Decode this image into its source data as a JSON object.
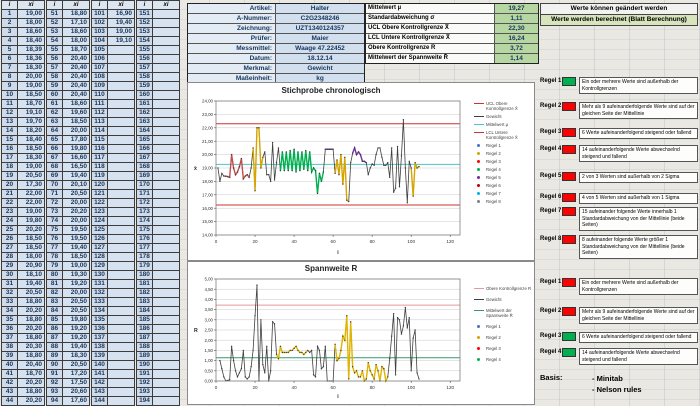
{
  "banner": {
    "line1": "Werte können geändert werden",
    "line2": "Werte werden berechnet (Blatt Berechnung)"
  },
  "form": {
    "rows": [
      {
        "label": "Artikel:",
        "value": "Halter"
      },
      {
        "label": "A-Nummer:",
        "value": "C2G2348246"
      },
      {
        "label": "Zeichnung:",
        "value": "UZT1340124357"
      },
      {
        "label": "Prüfer:",
        "value": "Maier"
      },
      {
        "label": "Messmittel:",
        "value": "Waage 47.22452"
      },
      {
        "label": "Datum:",
        "value": "18.12.14"
      },
      {
        "label": "Merkmal:",
        "value": "Gewicht"
      },
      {
        "label": "Maßeinheit:",
        "value": "kg"
      }
    ]
  },
  "stats": {
    "rows": [
      {
        "label": "Mittelwert µ",
        "value": "19,27"
      },
      {
        "label": "Standardabweichung σ",
        "value": "1,11"
      },
      {
        "label": "UCL Obere Kontrollgrenze X̄",
        "value": "22,30"
      },
      {
        "label": "LCL Untere Kontrollgrenze X̄",
        "value": "16,24"
      },
      {
        "label": "Obere Kontrollgrenze R",
        "value": "3,72"
      },
      {
        "label": "Mittelwert der Spannweite R̄",
        "value": "1,14"
      }
    ],
    "value_bg": "#b7d7a2"
  },
  "data_table": {
    "col_headers": [
      "i",
      "xi"
    ],
    "rows_per_group": 44,
    "groups": [
      {
        "start": 1,
        "values": [
          "19,00",
          "18,00",
          "18,60",
          "18,40",
          "18,39",
          "18,36",
          "18,30",
          "20,00",
          "19,00",
          "18,50",
          "18,70",
          "19,10",
          "19,70",
          "18,20",
          "18,40",
          "18,50",
          "18,30",
          "19,00",
          "20,50",
          "17,30",
          "22,00",
          "22,00",
          "19,00",
          "19,80",
          "20,20",
          "18,50",
          "18,50",
          "18,00",
          "20,90",
          "18,10",
          "19,40",
          "20,50",
          "18,80",
          "20,20",
          "18,80",
          "20,20",
          "18,80",
          "20,30",
          "18,80",
          "20,40",
          "18,70",
          "20,20",
          "18,80",
          "20,20"
        ]
      },
      {
        "start": 51,
        "values": [
          "18,80",
          "17,10",
          "18,60",
          "18,00",
          "18,70",
          "20,40",
          "20,40",
          "20,40",
          "20,40",
          "20,40",
          "18,60",
          "19,60",
          "18,50",
          "20,00",
          "17,80",
          "19,80",
          "16,60",
          "16,50",
          "19,40",
          "20,10",
          "20,50",
          "20,00",
          "20,20",
          "20,00",
          "19,50",
          "19,50",
          "19,40",
          "18,50",
          "19,00",
          "19,30",
          "19,20",
          "20,00",
          "20,50",
          "20,50",
          "19,80",
          "19,20",
          "19,20",
          "19,40",
          "18,30",
          "20,50",
          "17,20",
          "17,50",
          "20,60",
          "17,60"
        ]
      },
      {
        "start": 101,
        "values": [
          "16,90",
          "19,40",
          "19,00",
          "19,10"
        ]
      },
      {
        "start": 151,
        "values": []
      }
    ]
  },
  "rules_xbar": [
    {
      "name": "Regel 1",
      "status_color": "#00B050",
      "text": "Ein oder mehrere Werte sind außerhalb der Kontrollgrenzen"
    },
    {
      "name": "Regel 2",
      "status_color": "#FF0000",
      "text": "Mehr als 9 aufeinanderfolgende Werte sind auf der gleichen Seite der Mittellinie"
    },
    {
      "name": "Regel 3",
      "status_color": "#FF0000",
      "text": "6 Werte aufeinanderfolgend steigend oder fallend"
    },
    {
      "name": "Regel 4",
      "status_color": "#FF0000",
      "text": "14 aufeinanderfolgende Werte abwechselnd steigend und fallend"
    },
    {
      "name": "Regel 5",
      "status_color": "#FF0000",
      "text": "2 von 3 Werten sind außerhalb von 2 Sigma"
    },
    {
      "name": "Regel 6",
      "status_color": "#FF0000",
      "text": "4 von 5 Werten sind außerhalb von 1 Sigma"
    },
    {
      "name": "Regel 7",
      "status_color": "#FF0000",
      "text": "15 aufeinander folgende Werte innerhalb 1 Standardabweichung von der Mittellinie (beide Seiten)"
    },
    {
      "name": "Regel 8",
      "status_color": "#FF0000",
      "text": "8 aufeinander folgende Werte größer 1 Standardabweichung von der Mittellinie (beide Seiten)"
    }
  ],
  "rules_r": [
    {
      "name": "Regel 1",
      "status_color": "#FF0000",
      "text": "Ein oder mehrere Werte sind außerhalb der Kontrollgrenzen"
    },
    {
      "name": "Regel 2",
      "status_color": "#FF0000",
      "text": "Mehr als 9 aufeinanderfolgende Werte sind auf der gleichen Seite der Mittellinie"
    },
    {
      "name": "Regel 3",
      "status_color": "#00B050",
      "text": "6 Werte aufeinanderfolgend steigend oder fallend"
    },
    {
      "name": "Regel 4",
      "status_color": "#00B050",
      "text": "14 aufeinanderfolgende Werte abwechselnd steigend und fallend"
    }
  ],
  "basis": {
    "label": "Basis:",
    "items": [
      "- Minitab",
      "- Nelson rules"
    ]
  },
  "chart_data": [
    {
      "type": "line",
      "title": "Stichprobe chronologisch",
      "xlabel": "i",
      "ylabel": "x̄",
      "xlim": [
        0,
        125
      ],
      "ylim": [
        14,
        24
      ],
      "x_ticks": [
        0,
        20,
        40,
        60,
        80,
        100,
        120
      ],
      "y_ticks": [
        14,
        15,
        16,
        17,
        18,
        19,
        20,
        21,
        22,
        23,
        24
      ],
      "grid": true,
      "legend_position": "right",
      "reference_lines": [
        {
          "name": "UCL Obere Kontrollgrenze X̄",
          "value": 22.3,
          "color": "#CC3333"
        },
        {
          "name": "Mittelwert µ",
          "value": 19.27,
          "color": "#4BC6C6"
        },
        {
          "name": "LCL Untere Kontrollgrenze X̄",
          "value": 16.24,
          "color": "#CC3333"
        }
      ],
      "series": [
        {
          "name": "Gewicht",
          "color": "#3F3F3F",
          "x_start": 1,
          "values": [
            19.0,
            18.0,
            18.6,
            18.4,
            18.39,
            18.36,
            18.3,
            20.0,
            19.0,
            18.5,
            18.7,
            19.1,
            19.7,
            18.2,
            18.4,
            18.5,
            18.3,
            19.0,
            20.5,
            17.3,
            22.0,
            22.0,
            19.0,
            19.8,
            20.2,
            18.5,
            18.5,
            18.0,
            20.9,
            18.1,
            19.4,
            20.5,
            18.8,
            20.2,
            18.8,
            20.2,
            18.8,
            20.3,
            18.8,
            20.4,
            18.7,
            20.2,
            18.8,
            20.2,
            18.9,
            20.3,
            18.8,
            20.2,
            18.7,
            19.0,
            18.8,
            17.1,
            18.6,
            18.0,
            18.7,
            20.4,
            20.4,
            20.4,
            20.4,
            20.4,
            18.6,
            19.6,
            18.5,
            20.0,
            17.8,
            19.8,
            16.6,
            16.5,
            19.4,
            20.1,
            20.5,
            20.0,
            20.2,
            20.0,
            19.5,
            19.5,
            19.4,
            18.5,
            19.0,
            19.3,
            19.2,
            20.0,
            20.5,
            20.5,
            19.8,
            19.2,
            19.2,
            19.4,
            18.3,
            20.5,
            17.2,
            17.5,
            20.6,
            17.6,
            19.9,
            22.6,
            19.0,
            16.4,
            19.5,
            19.0,
            16.9,
            19.4,
            19.0,
            19.1
          ]
        }
      ],
      "violation_segments": [
        {
          "rule": "Regel 2",
          "color": "#C0504D",
          "from": 4,
          "to": 17
        },
        {
          "rule": "Regel 1",
          "color": "#D6A500",
          "from": 19,
          "to": 24
        },
        {
          "rule": "Regel 4",
          "color": "#00B050",
          "from": 33,
          "to": 55
        },
        {
          "rule": "Regel 7",
          "color": "#7030A0",
          "from": 56,
          "to": 60
        },
        {
          "rule": "Regel 2",
          "color": "#D6A500",
          "from": 61,
          "to": 68
        },
        {
          "rule": "Regel 7",
          "color": "#7030A0",
          "from": 70,
          "to": 77
        },
        {
          "rule": "Regel 2",
          "color": "#D6A500",
          "from": 100,
          "to": 104
        }
      ],
      "legend": [
        {
          "label": "UCL Obere Kontrollgrenze X̄",
          "type": "line",
          "color": "#CC3333"
        },
        {
          "label": "Gewicht",
          "type": "line-marker",
          "color": "#3F3F3F"
        },
        {
          "label": "Mittelwert µ",
          "type": "line",
          "color": "#4BC6C6"
        },
        {
          "label": "LCL Untere Kontrollgrenze X̄",
          "type": "line",
          "color": "#CC3333"
        },
        {
          "label": "Regel 1",
          "type": "marker",
          "color": "#4472C4"
        },
        {
          "label": "Regel 2",
          "type": "marker",
          "color": "#D6A500"
        },
        {
          "label": "Regel 3",
          "type": "marker",
          "color": "#FF0000"
        },
        {
          "label": "Regel 4",
          "type": "marker",
          "color": "#00B050"
        },
        {
          "label": "Regel 5",
          "type": "marker",
          "color": "#7030A0"
        },
        {
          "label": "Regel 6",
          "type": "marker",
          "color": "#C00000"
        },
        {
          "label": "Regel 7",
          "type": "marker",
          "color": "#00B0F0"
        },
        {
          "label": "Regel 8",
          "type": "marker",
          "color": "#808080"
        }
      ]
    },
    {
      "type": "line",
      "title": "Spannweite R",
      "xlabel": "i",
      "ylabel": "R",
      "xlim": [
        0,
        125
      ],
      "ylim": [
        0,
        5
      ],
      "x_ticks": [
        0,
        20,
        40,
        60,
        80,
        100,
        120
      ],
      "y_ticks": [
        0,
        0.5,
        1,
        1.5,
        2,
        2.5,
        3,
        3.5,
        4,
        4.5,
        5
      ],
      "grid": true,
      "legend_position": "right",
      "reference_lines": [
        {
          "name": "Obere Kontrollgrenze R",
          "value": 3.72,
          "color": "#E89999"
        },
        {
          "name": "Mittelwert der Spannweite R̄",
          "value": 1.14,
          "color": "#33996B"
        }
      ],
      "series": [
        {
          "name": "Gewicht",
          "color": "#3F3F3F",
          "x_start": 2,
          "values": [
            1.0,
            0.6,
            0.2,
            0.01,
            0.03,
            0.06,
            1.7,
            1.0,
            0.5,
            0.2,
            0.4,
            0.6,
            1.5,
            0.2,
            0.1,
            0.2,
            0.7,
            1.5,
            3.2,
            4.7,
            0.0,
            3.0,
            0.8,
            0.4,
            1.7,
            0.0,
            0.5,
            2.9,
            2.8,
            1.3,
            1.1,
            1.7,
            1.4,
            1.4,
            1.4,
            1.4,
            1.5,
            1.5,
            1.6,
            1.7,
            1.5,
            1.4,
            1.4,
            1.3,
            1.4,
            1.5,
            1.4,
            1.5,
            0.3,
            0.2,
            1.7,
            1.5,
            0.6,
            0.7,
            1.7,
            0.0,
            0.0,
            0.0,
            0.0,
            1.8,
            1.0,
            1.1,
            1.5,
            2.2,
            2.0,
            3.2,
            0.1,
            2.9,
            0.7,
            0.4,
            0.5,
            0.2,
            0.2,
            0.5,
            0.0,
            0.1,
            0.9,
            0.5,
            0.3,
            0.1,
            0.8,
            0.5,
            0.0,
            0.7,
            0.6,
            0.0,
            0.2,
            1.1,
            2.2,
            3.3,
            0.3,
            3.1,
            3.0,
            2.3,
            2.7,
            3.6,
            2.6,
            3.1,
            0.5,
            2.1,
            2.5,
            0.4,
            0.1
          ]
        }
      ],
      "violation_segments": [
        {
          "rule": "Regel 2",
          "color": "#E0B400",
          "from": 31,
          "to": 47
        },
        {
          "rule": "Regel 2",
          "color": "#E0B400",
          "from": 61,
          "to": 88
        }
      ],
      "legend": [
        {
          "label": "Obere Kontrollgrenze R",
          "type": "line",
          "color": "#E89999"
        },
        {
          "label": "Gewicht",
          "type": "line-marker",
          "color": "#3F3F3F"
        },
        {
          "label": "Mittelwert der Spannweite R̄",
          "type": "line",
          "color": "#33996B"
        },
        {
          "label": "Regel 1",
          "type": "marker",
          "color": "#4472C4"
        },
        {
          "label": "Regel 2",
          "type": "marker",
          "color": "#D6A500"
        },
        {
          "label": "Regel 3",
          "type": "marker",
          "color": "#FF0000"
        },
        {
          "label": "Regel 4",
          "type": "marker",
          "color": "#00B050"
        }
      ]
    }
  ]
}
